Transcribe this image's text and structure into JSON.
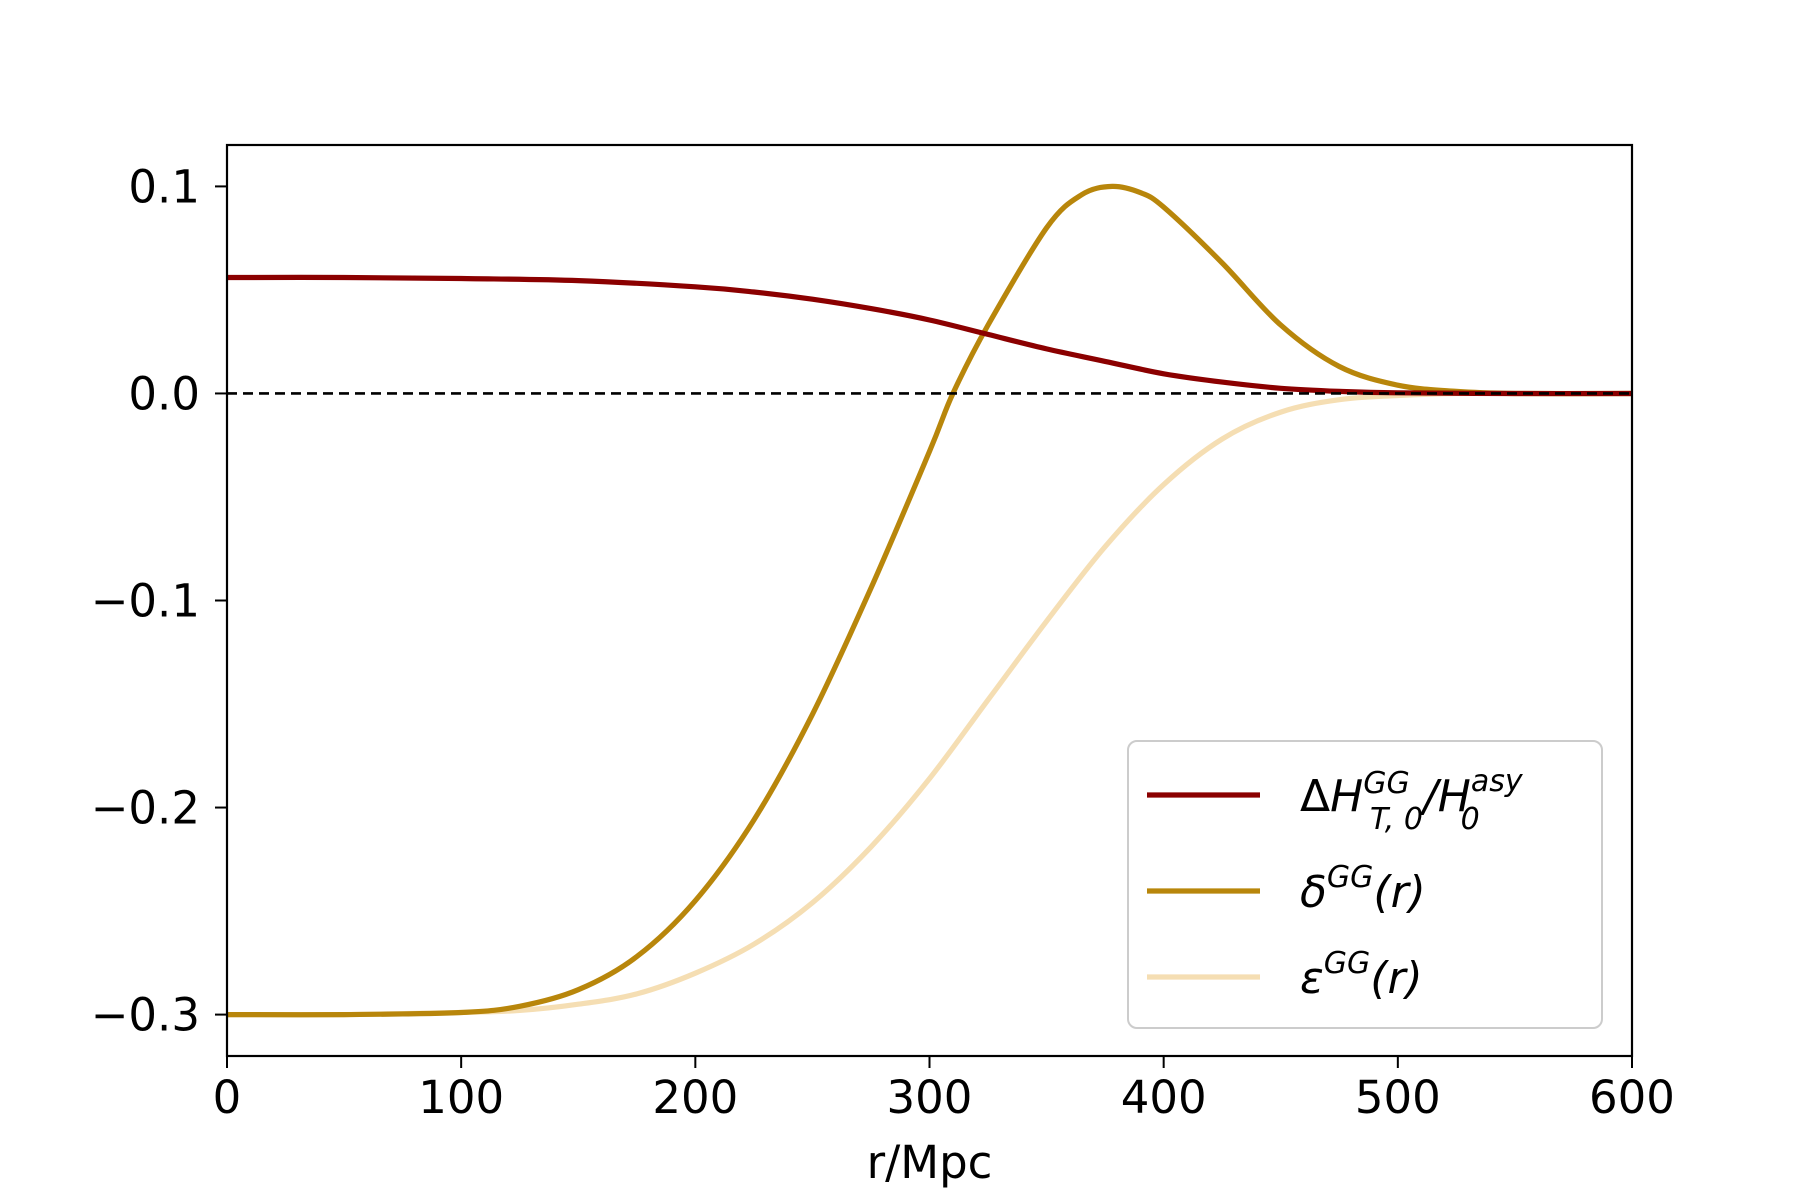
{
  "chart_data": {
    "type": "line",
    "xlabel": "r/Mpc",
    "ylabel": "",
    "xlim": [
      0,
      600
    ],
    "ylim": [
      -0.32,
      0.12
    ],
    "xticks": [
      0,
      100,
      200,
      300,
      400,
      500,
      600
    ],
    "yticks": [
      0.1,
      0.0,
      -0.1,
      -0.2,
      -0.3
    ],
    "xtick_labels": [
      "0",
      "100",
      "200",
      "300",
      "400",
      "500",
      "600"
    ],
    "ytick_labels": [
      "0.1",
      "0.0",
      "−0.1",
      "−0.2",
      "−0.3"
    ],
    "grid": false,
    "legend_position": "lower-right",
    "reference_line": {
      "y": 0,
      "style": "dashed",
      "color": "#000000"
    },
    "series": [
      {
        "name": "ΔH_{T,0}^{GG}/H_0^{asy}",
        "legend": {
          "base": "ΔH",
          "sup1": "GG",
          "sub1": "T, 0",
          "mid": "/H",
          "sup2": "asy",
          "sub2": "0"
        },
        "color": "#8b0000",
        "x": [
          0,
          50,
          100,
          150,
          200,
          225,
          250,
          275,
          300,
          325,
          350,
          375,
          400,
          425,
          450,
          475,
          500,
          550,
          600
        ],
        "values": [
          0.056,
          0.056,
          0.0555,
          0.0545,
          0.0515,
          0.049,
          0.0455,
          0.041,
          0.0355,
          0.0285,
          0.0215,
          0.0155,
          0.0095,
          0.0055,
          0.0025,
          0.001,
          0.0003,
          0.0,
          0.0
        ]
      },
      {
        "name": "δ^{GG}(r)",
        "legend": {
          "base": "δ",
          "sup1": "GG",
          "tail": "(r)"
        },
        "color": "#b8860b",
        "x": [
          0,
          50,
          100,
          125,
          150,
          175,
          200,
          225,
          250,
          275,
          300,
          310,
          325,
          350,
          365,
          378,
          390,
          400,
          425,
          450,
          475,
          500,
          525,
          550,
          600
        ],
        "values": [
          -0.3,
          -0.3,
          -0.299,
          -0.296,
          -0.288,
          -0.272,
          -0.245,
          -0.206,
          -0.155,
          -0.094,
          -0.028,
          0.0,
          0.033,
          0.08,
          0.096,
          0.1,
          0.097,
          0.09,
          0.063,
          0.033,
          0.013,
          0.004,
          0.001,
          0.0,
          0.0
        ]
      },
      {
        "name": "ε^{GG}(r)",
        "legend": {
          "base": "ε",
          "sup1": "GG",
          "tail": "(r)"
        },
        "color": "#f5deb3",
        "x": [
          0,
          50,
          100,
          125,
          150,
          175,
          200,
          225,
          250,
          275,
          300,
          325,
          350,
          375,
          400,
          425,
          450,
          475,
          500,
          525,
          550,
          600
        ],
        "values": [
          -0.3,
          -0.3,
          -0.299,
          -0.298,
          -0.295,
          -0.29,
          -0.28,
          -0.266,
          -0.246,
          -0.219,
          -0.186,
          -0.148,
          -0.11,
          -0.074,
          -0.044,
          -0.022,
          -0.009,
          -0.003,
          -0.001,
          0.0,
          0.0,
          0.0
        ]
      }
    ]
  }
}
